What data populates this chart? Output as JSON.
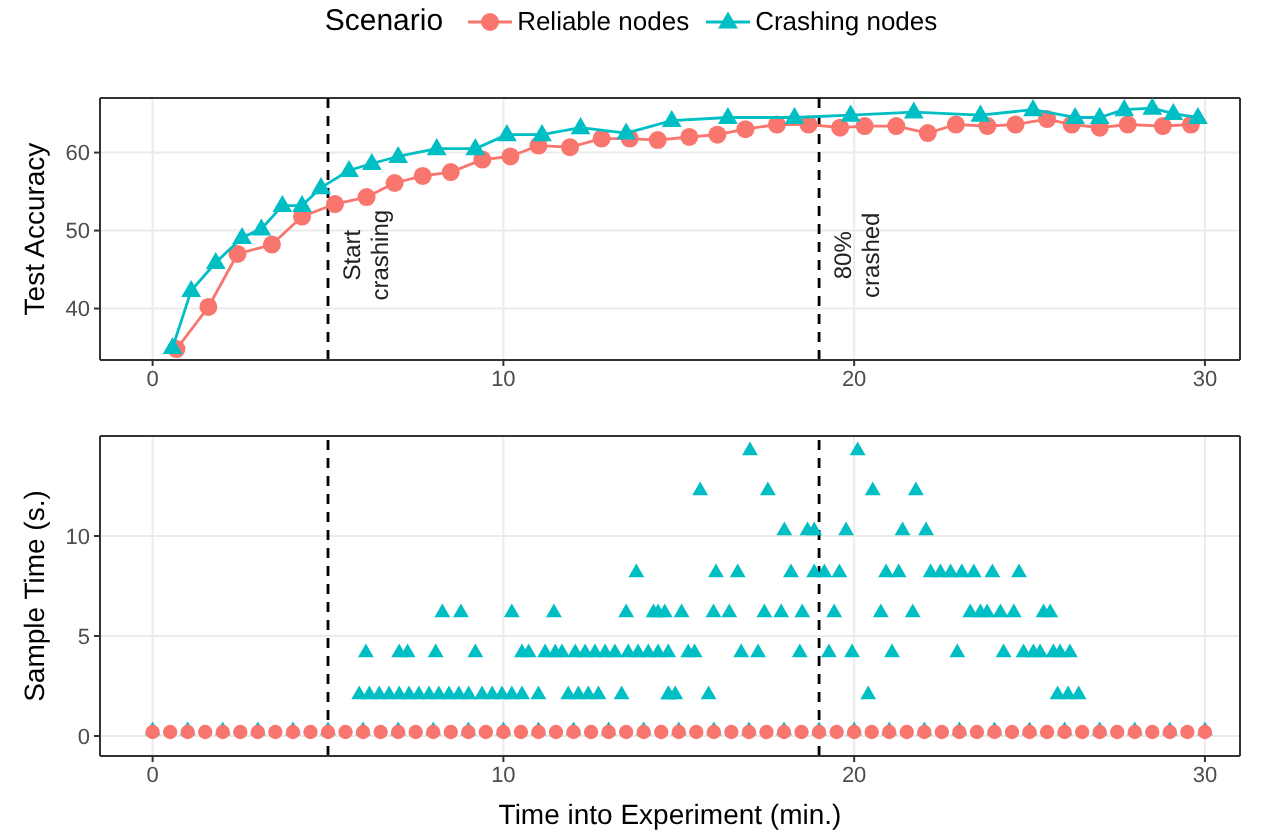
{
  "chart_data": [
    {
      "type": "line",
      "ylabel": "Test Accuracy",
      "legend": "top",
      "legend_title": "Scenario",
      "grid": true,
      "xlim": [
        -1.5,
        31
      ],
      "xticks": [
        0,
        10,
        20,
        30
      ],
      "ylim": [
        33.4,
        67
      ],
      "yticks": [
        40,
        50,
        60
      ],
      "ref_lines": [
        {
          "axis": "x",
          "value": 5,
          "label": "Start crashing",
          "line_style": "dashed",
          "color": "#000000"
        },
        {
          "axis": "x",
          "value": 19,
          "label": "80% crashed",
          "line_style": "dashed",
          "color": "#000000"
        }
      ],
      "series": [
        {
          "name": "Reliable nodes",
          "color": "#f8766d",
          "marker": "circle",
          "x": [
            0.68,
            1.59,
            2.42,
            3.4,
            4.26,
            5.2,
            6.1,
            6.9,
            7.7,
            8.5,
            9.4,
            10.2,
            11.0,
            11.9,
            12.8,
            13.6,
            14.4,
            15.3,
            16.1,
            16.9,
            17.8,
            18.7,
            19.6,
            20.3,
            21.2,
            22.1,
            22.9,
            23.8,
            24.6,
            25.5,
            26.2,
            27.0,
            27.8,
            28.8,
            29.6
          ],
          "values": [
            34.8,
            40.2,
            47.0,
            48.2,
            51.8,
            53.4,
            54.3,
            56.1,
            57.0,
            57.5,
            59.1,
            59.5,
            60.9,
            60.7,
            61.8,
            61.8,
            61.6,
            62.0,
            62.3,
            63.0,
            63.6,
            63.6,
            63.2,
            63.4,
            63.4,
            62.5,
            63.6,
            63.4,
            63.6,
            64.3,
            63.6,
            63.2,
            63.6,
            63.4,
            63.6
          ]
        },
        {
          "name": "Crashing nodes",
          "color": "#00bfc4",
          "marker": "triangle",
          "x": [
            0.57,
            1.1,
            1.8,
            2.55,
            3.1,
            3.7,
            4.26,
            4.8,
            5.6,
            6.25,
            7.0,
            8.1,
            9.2,
            10.1,
            11.1,
            12.2,
            13.5,
            14.8,
            16.4,
            18.3,
            19.9,
            21.7,
            23.6,
            25.1,
            26.3,
            27.0,
            27.7,
            28.5,
            29.1,
            29.8
          ],
          "values": [
            35.0,
            42.3,
            45.9,
            49.1,
            50.2,
            53.2,
            53.2,
            55.5,
            57.7,
            58.6,
            59.5,
            60.5,
            60.5,
            62.3,
            62.3,
            63.2,
            62.5,
            64.1,
            64.5,
            64.5,
            64.8,
            65.2,
            64.8,
            65.5,
            64.5,
            64.5,
            65.5,
            65.7,
            65.0,
            64.5
          ]
        }
      ]
    },
    {
      "type": "scatter",
      "xlabel": "Time into Experiment (min.)",
      "ylabel": "Sample Time (s.)",
      "grid": true,
      "xlim": [
        -1.5,
        31
      ],
      "xticks": [
        0,
        10,
        20,
        30
      ],
      "ylim": [
        -1,
        15
      ],
      "yticks": [
        0,
        5,
        10
      ],
      "ref_lines": [
        {
          "axis": "x",
          "value": 5,
          "line_style": "dashed",
          "color": "#000000"
        },
        {
          "axis": "x",
          "value": 19,
          "line_style": "dashed",
          "color": "#000000"
        }
      ],
      "series": [
        {
          "color": "#00bfc4",
          "marker": "triangle",
          "x": [
            0,
            1,
            2,
            3,
            4,
            5,
            6,
            7,
            8,
            9,
            10,
            11,
            12,
            13,
            14,
            15,
            16,
            17,
            18,
            19,
            20,
            21,
            22,
            23,
            24,
            25,
            26,
            27,
            28,
            29,
            30,
            5.89,
            6.18,
            6.46,
            6.74,
            7.03,
            7.31,
            7.59,
            7.88,
            8.16,
            8.45,
            8.73,
            9.01,
            9.39,
            9.68,
            9.96,
            10.24,
            10.53,
            11.0,
            11.85,
            12.14,
            12.42,
            12.71,
            13.37,
            14.7,
            14.71,
            14.9,
            15.85,
            20.4,
            25.8,
            26.1,
            26.4,
            6.08,
            7.03,
            7.27,
            8.07,
            9.2,
            10.53,
            10.72,
            11.19,
            11.48,
            11.67,
            12.05,
            12.33,
            12.61,
            12.9,
            13.18,
            13.56,
            13.84,
            14.13,
            14.41,
            14.7,
            15.27,
            15.45,
            16.78,
            17.26,
            18.45,
            19.28,
            19.94,
            21.08,
            22.94,
            24.26,
            24.83,
            25.11,
            25.3,
            25.68,
            25.87,
            26.15,
            8.26,
            8.79,
            10.24,
            11.44,
            13.5,
            14.28,
            14.6,
            14.41,
            15.08,
            15.99,
            16.44,
            17.44,
            17.92,
            18.52,
            19.43,
            20.76,
            21.67,
            23.31,
            23.6,
            23.79,
            24.17,
            24.55,
            25.4,
            25.59,
            13.79,
            16.06,
            16.68,
            18.2,
            18.86,
            19.15,
            19.58,
            20.91,
            21.27,
            22.18,
            22.46,
            22.75,
            23.07,
            23.41,
            23.94,
            24.7,
            18.01,
            18.67,
            18.86,
            19.77,
            21.38,
            22.05,
            15.61,
            17.54,
            20.53,
            21.76,
            17.03,
            20.1
          ],
          "values": [
            0.3,
            0.3,
            0.3,
            0.3,
            0.3,
            0.3,
            0.3,
            0.3,
            0.3,
            0.3,
            0.3,
            0.3,
            0.3,
            0.3,
            0.3,
            0.3,
            0.3,
            0.3,
            0.3,
            0.3,
            0.3,
            0.3,
            0.3,
            0.3,
            0.3,
            0.3,
            0.3,
            0.3,
            0.3,
            0.3,
            0.3,
            2.1,
            2.1,
            2.1,
            2.1,
            2.1,
            2.1,
            2.1,
            2.1,
            2.1,
            2.1,
            2.1,
            2.1,
            2.1,
            2.1,
            2.1,
            2.1,
            2.1,
            2.1,
            2.1,
            2.1,
            2.1,
            2.1,
            2.1,
            2.1,
            2.1,
            2.1,
            2.1,
            2.1,
            2.1,
            2.1,
            2.1,
            4.2,
            4.2,
            4.2,
            4.2,
            4.2,
            4.2,
            4.2,
            4.2,
            4.2,
            4.2,
            4.2,
            4.2,
            4.2,
            4.2,
            4.2,
            4.2,
            4.2,
            4.2,
            4.2,
            4.2,
            4.2,
            4.2,
            4.2,
            4.2,
            4.2,
            4.2,
            4.2,
            4.2,
            4.2,
            4.2,
            4.2,
            4.2,
            4.2,
            4.2,
            4.2,
            4.2,
            6.2,
            6.2,
            6.2,
            6.2,
            6.2,
            6.2,
            6.2,
            6.2,
            6.2,
            6.2,
            6.2,
            6.2,
            6.2,
            6.2,
            6.2,
            6.2,
            6.2,
            6.2,
            6.2,
            6.2,
            6.2,
            6.2,
            6.2,
            6.2,
            8.2,
            8.2,
            8.2,
            8.2,
            8.2,
            8.2,
            8.2,
            8.2,
            8.2,
            8.2,
            8.2,
            8.2,
            8.2,
            8.2,
            8.2,
            8.2,
            10.3,
            10.3,
            10.3,
            10.3,
            10.3,
            10.3,
            12.3,
            12.3,
            12.3,
            12.3,
            14.3,
            14.3
          ]
        },
        {
          "color": "#f8766d",
          "marker": "circle",
          "x": [
            0,
            0.5,
            1,
            1.5,
            2,
            2.5,
            3,
            3.5,
            4,
            4.5,
            5,
            5.5,
            6,
            6.5,
            7,
            7.5,
            8,
            8.5,
            9,
            9.5,
            10,
            10.5,
            11,
            11.5,
            12,
            12.5,
            13,
            13.5,
            14,
            14.5,
            15,
            15.5,
            16,
            16.5,
            17,
            17.5,
            18,
            18.5,
            19,
            19.5,
            20,
            20.5,
            21,
            21.5,
            22,
            22.5,
            23,
            23.5,
            24,
            24.5,
            25,
            25.5,
            26,
            26.5,
            27,
            27.5,
            28,
            28.5,
            29,
            29.5,
            30
          ],
          "values": [
            0.2,
            0.2,
            0.2,
            0.2,
            0.2,
            0.2,
            0.2,
            0.2,
            0.2,
            0.2,
            0.2,
            0.2,
            0.2,
            0.2,
            0.2,
            0.2,
            0.2,
            0.2,
            0.2,
            0.2,
            0.2,
            0.2,
            0.2,
            0.2,
            0.2,
            0.2,
            0.2,
            0.2,
            0.2,
            0.2,
            0.2,
            0.2,
            0.2,
            0.2,
            0.2,
            0.2,
            0.2,
            0.2,
            0.2,
            0.2,
            0.2,
            0.2,
            0.2,
            0.2,
            0.2,
            0.2,
            0.2,
            0.2,
            0.2,
            0.2,
            0.2,
            0.2,
            0.2,
            0.2,
            0.2,
            0.2,
            0.2,
            0.2,
            0.2,
            0.2,
            0.2
          ]
        }
      ]
    }
  ]
}
